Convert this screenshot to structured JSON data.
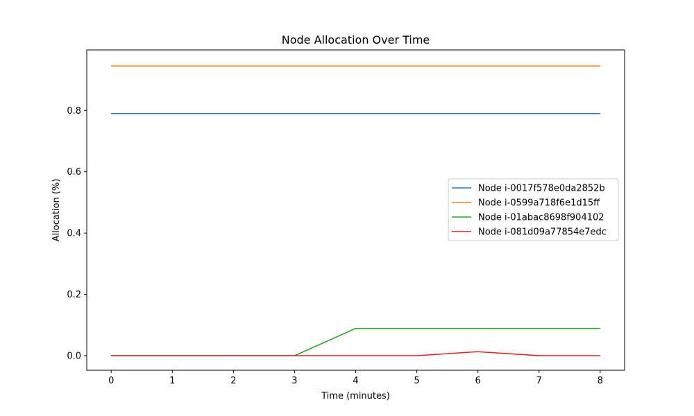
{
  "chart_data": {
    "type": "line",
    "title": "Node Allocation Over Time",
    "xlabel": "Time (minutes)",
    "ylabel": "Allocation (%)",
    "x": [
      0,
      1,
      2,
      3,
      4,
      5,
      6,
      7,
      8
    ],
    "xlim": [
      -0.4,
      8.4
    ],
    "ylim": [
      -0.0475,
      0.9975
    ],
    "xticks": [
      "0",
      "1",
      "2",
      "3",
      "4",
      "5",
      "6",
      "7",
      "8"
    ],
    "yticks": [
      "0.0",
      "0.2",
      "0.4",
      "0.6",
      "0.8"
    ],
    "ytick_values": [
      0.0,
      0.2,
      0.4,
      0.6,
      0.8
    ],
    "grid": false,
    "legend_position": "center-right",
    "series": [
      {
        "name": "Node i-0017f578e0da2852b",
        "color": "#1f77b4",
        "values": [
          0.79,
          0.79,
          0.79,
          0.79,
          0.79,
          0.79,
          0.79,
          0.79,
          0.79
        ]
      },
      {
        "name": "Node i-0599a718f6e1d15ff",
        "color": "#ff7f0e",
        "values": [
          0.945,
          0.945,
          0.945,
          0.945,
          0.945,
          0.945,
          0.945,
          0.945,
          0.945
        ]
      },
      {
        "name": "Node i-01abac8698f904102",
        "color": "#2ca02c",
        "values": [
          0.0,
          0.0,
          0.0,
          0.0,
          0.089,
          0.089,
          0.089,
          0.089,
          0.089
        ]
      },
      {
        "name": "Node i-081d09a77854e7edc",
        "color": "#d62728",
        "values": [
          0.0,
          0.0,
          0.0,
          0.0,
          0.0,
          0.0,
          0.013,
          0.0,
          0.0
        ]
      }
    ]
  }
}
